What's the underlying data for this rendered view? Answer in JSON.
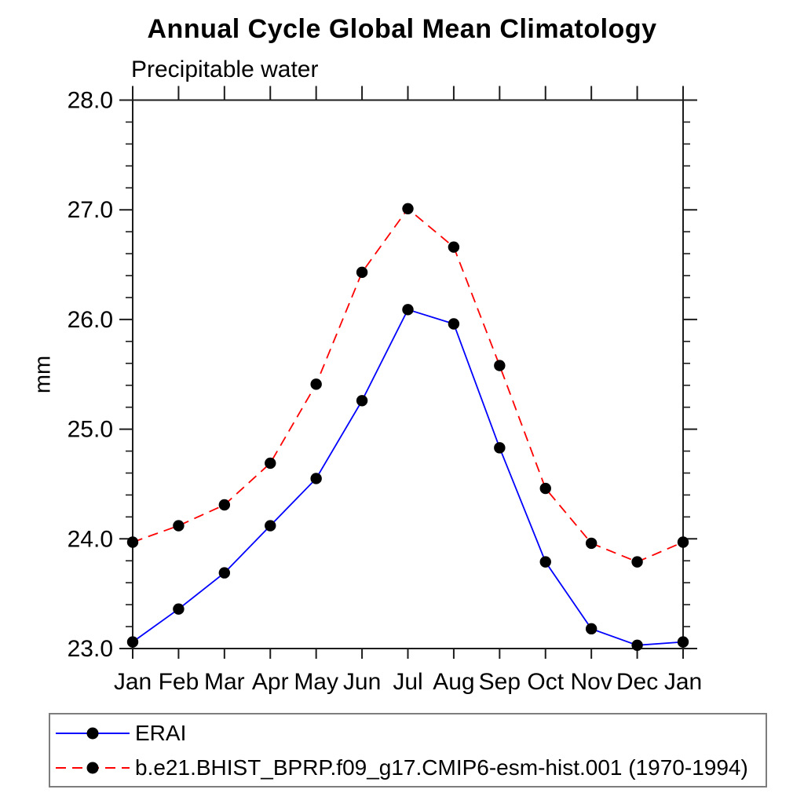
{
  "chart_data": {
    "type": "line",
    "title": "Annual Cycle Global Mean Climatology",
    "subtitle": "Precipitable water",
    "xlabel": "",
    "ylabel": "mm",
    "categories": [
      "Jan",
      "Feb",
      "Mar",
      "Apr",
      "May",
      "Jun",
      "Jul",
      "Aug",
      "Sep",
      "Oct",
      "Nov",
      "Dec",
      "Jan"
    ],
    "ylim": [
      23.0,
      28.0
    ],
    "ytick_major": 1.0,
    "ytick_minor": 0.2,
    "ytick_labels": [
      "23.0",
      "24.0",
      "25.0",
      "26.0",
      "27.0",
      "28.0"
    ],
    "grid": false,
    "legend_position": "bottom-left-box",
    "series": [
      {
        "name": "ERAI",
        "color": "#0000ff",
        "line_style": "solid",
        "marker": "filled-circle",
        "marker_color": "#000000",
        "values": [
          23.06,
          23.36,
          23.69,
          24.12,
          24.55,
          25.26,
          26.09,
          25.96,
          24.83,
          23.79,
          23.18,
          23.03,
          23.06
        ]
      },
      {
        "name": "b.e21.BHIST_BPRP.f09_g17.CMIP6-esm-hist.001 (1970-1994)",
        "color": "#ff0000",
        "line_style": "dashed",
        "marker": "filled-circle",
        "marker_color": "#000000",
        "values": [
          23.97,
          24.12,
          24.31,
          24.69,
          25.41,
          26.43,
          27.01,
          26.66,
          25.58,
          24.46,
          23.96,
          23.79,
          23.97
        ]
      }
    ]
  },
  "colors": {
    "erai_line": "#0000ff",
    "model_line": "#ff0000",
    "marker": "#000000",
    "axis": "#1c1c1c",
    "legend_border": "#7d7d7d",
    "background": "#ffffff"
  }
}
